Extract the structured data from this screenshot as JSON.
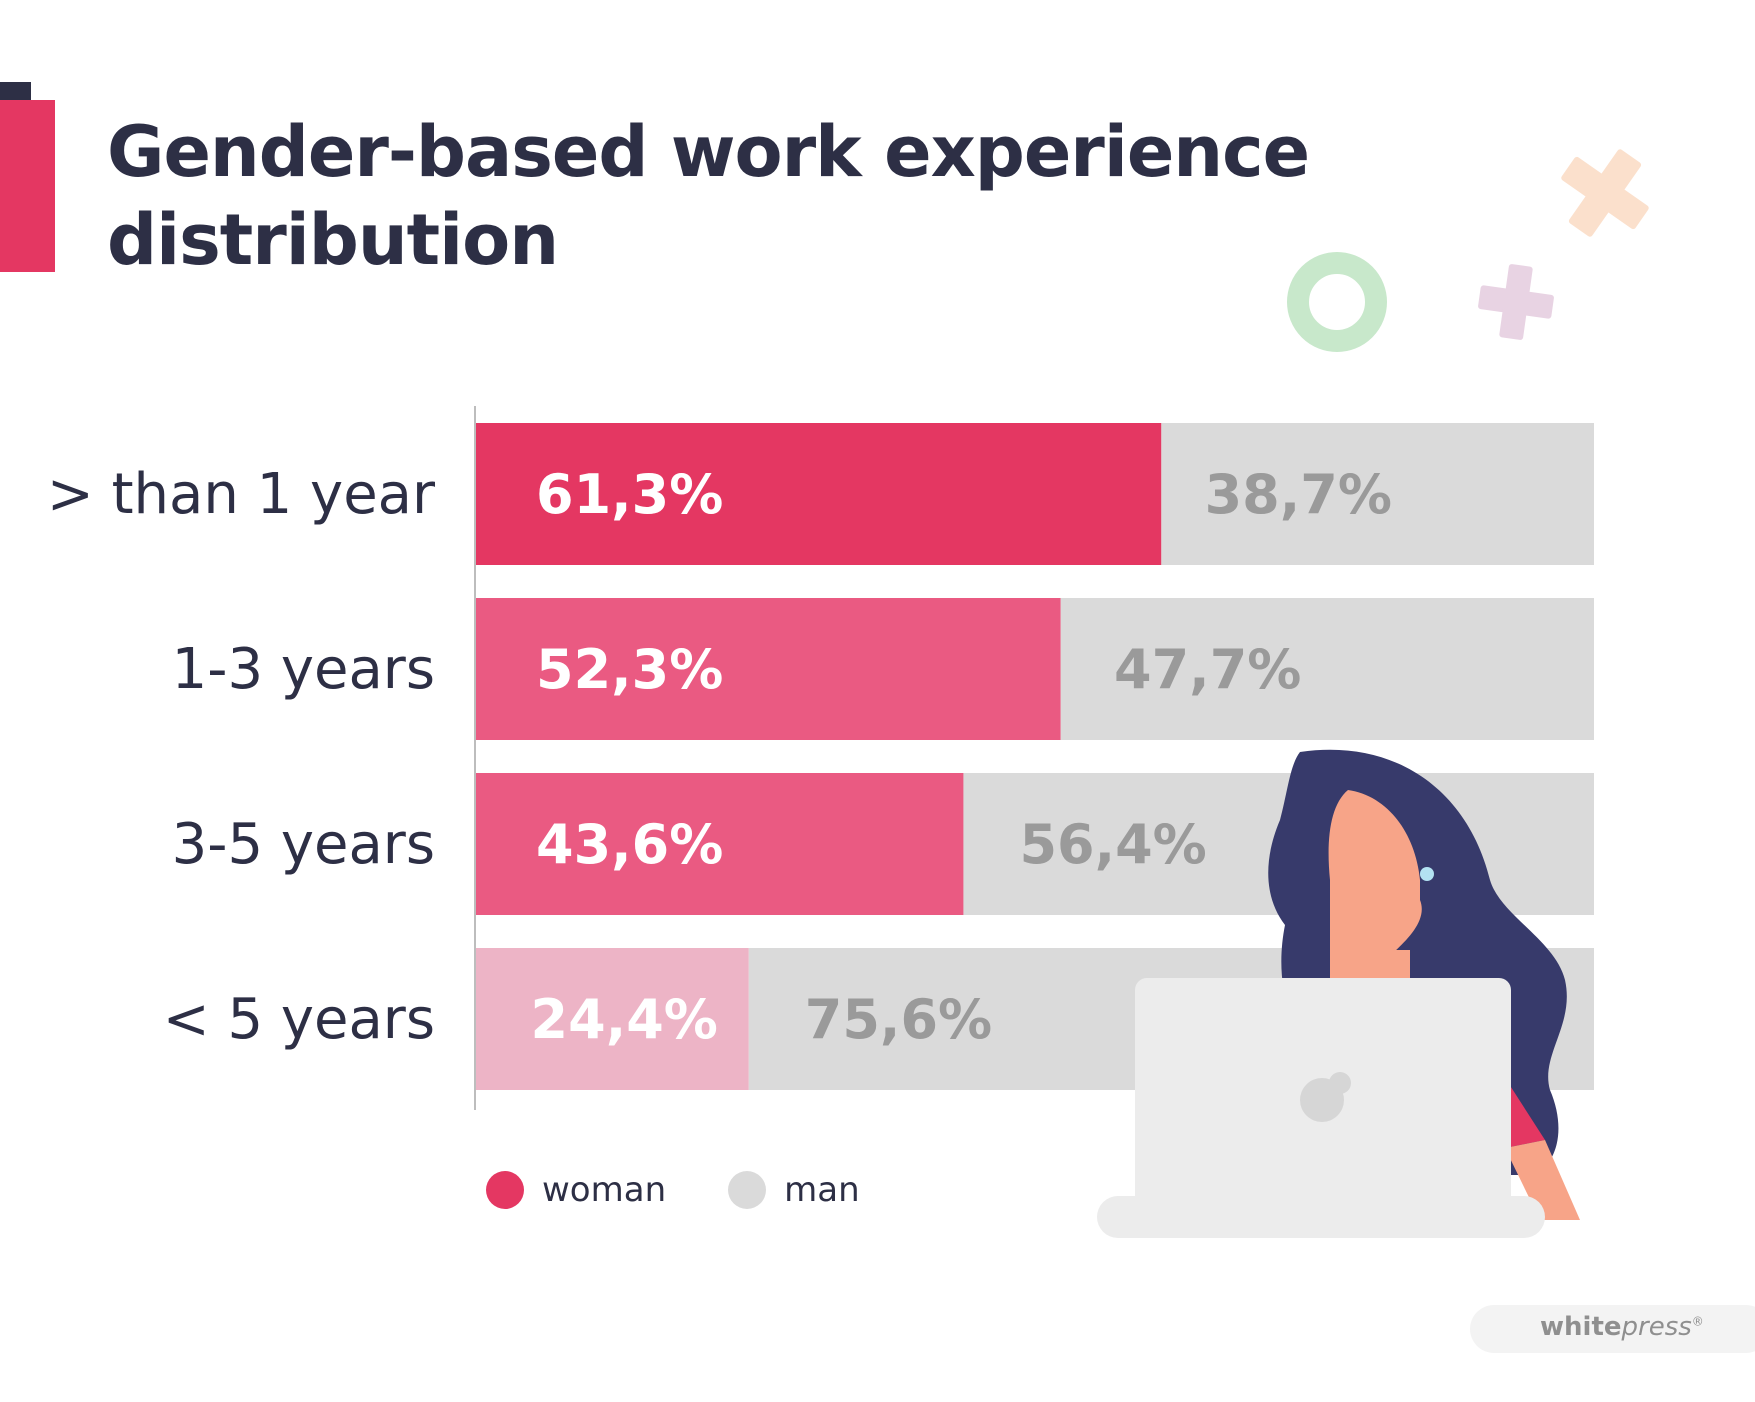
{
  "title": "Gender-based work experience distribution",
  "colors": {
    "dark": "#2d2f45",
    "woman_row_1": "#e43762",
    "woman_row_2": "#ea5a82",
    "woman_row_3": "#ea5a82",
    "woman_row_4": "#edb4c6",
    "man": "#dadada",
    "man_text": "#9a9a9a"
  },
  "chart_data": {
    "type": "bar",
    "orientation": "horizontal",
    "stacked": true,
    "categories": [
      "> than 1 year",
      "1-3 years",
      "3-5 years",
      "< 5 years"
    ],
    "series": [
      {
        "name": "woman",
        "values": [
          61.3,
          52.3,
          43.6,
          24.4
        ],
        "labels": [
          "61,3%",
          "52,3%",
          "43,6%",
          "24,4%"
        ]
      },
      {
        "name": "man",
        "values": [
          38.7,
          47.7,
          56.4,
          75.6
        ],
        "labels": [
          "38,7%",
          "47,7%",
          "56,4%",
          "75,6%"
        ]
      }
    ],
    "xlim": [
      0,
      100
    ],
    "grid": false,
    "legend_position": "bottom-left"
  },
  "legend": {
    "woman": "woman",
    "man": "man"
  },
  "brand": {
    "bold": "white",
    "italic": "press",
    "mark": "®"
  }
}
